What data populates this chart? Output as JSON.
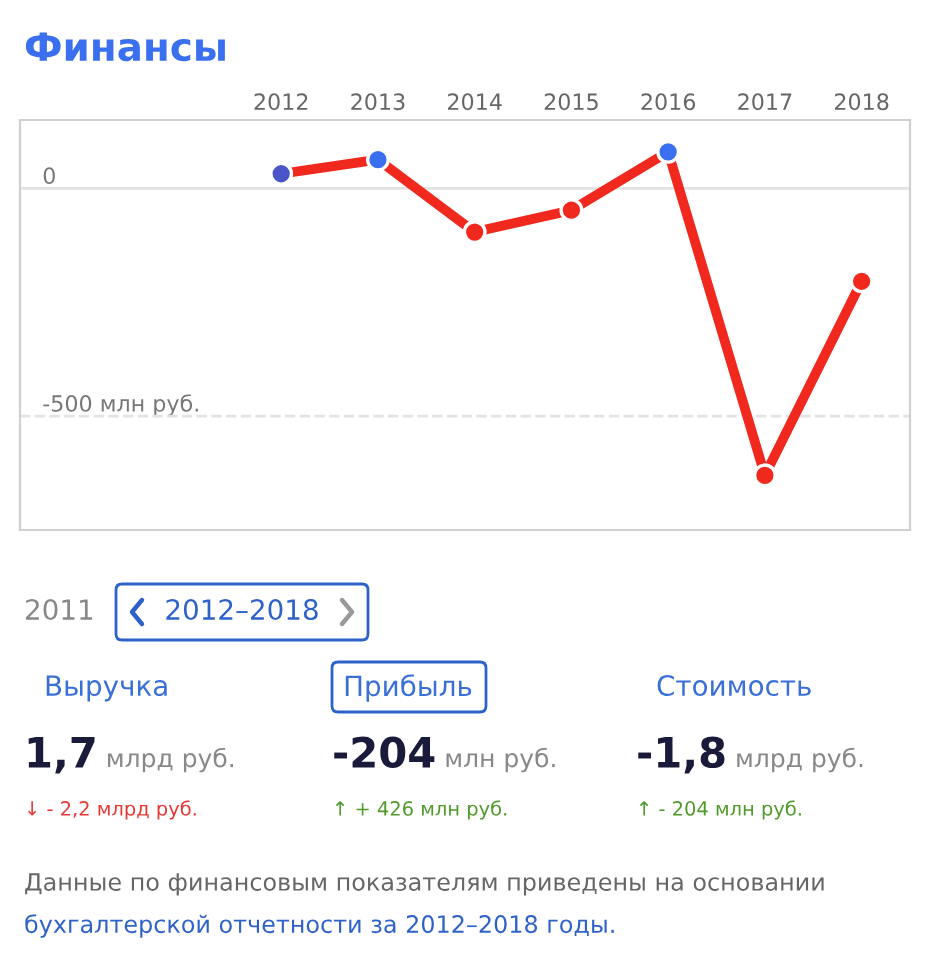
{
  "chart_data": [
    {
      "type": "line",
      "title": "Финансы",
      "categories": [
        "2012",
        "2013",
        "2014",
        "2015",
        "2016",
        "2017",
        "2018"
      ],
      "series": [
        {
          "color": "#f0281e",
          "colors": [
            "#4a55c8",
            "#3a6ff0",
            "#f0281e",
            "#f0281e",
            "#3a6ff0",
            "#f0281e",
            "#f0281e"
          ],
          "values": [
            32,
            63,
            -96,
            -48,
            80,
            -630,
            -204
          ]
        }
      ],
      "ylim": [
        -750,
        150
      ],
      "yticks": [
        0,
        {
          "value": -500,
          "label": "-500 млн руб."
        }
      ],
      "marker": "circle",
      "line_style": "solid",
      "ref_lines": [
        {
          "axis": "y",
          "value": 0,
          "color": "#e3e3e3",
          "line_style": "solid"
        },
        {
          "axis": "y",
          "value": -500,
          "color": "#e3e3e3",
          "line_style": "dashed"
        }
      ],
      "legend": false
    },
    {
      "type": "other",
      "annotations": [
        "2011",
        "2012–2018",
        "Выручка",
        "Прибыль",
        "Стоимость",
        "1,7",
        "млрд руб.",
        "-204",
        "млн руб.",
        "-1,8",
        "млрд руб.",
        "↓ - 2,2 млрд руб.",
        "↑ + 426 млн руб.",
        "↑ - 204 млн руб.",
        "Данные по финансовым показателям приведены на основании",
        "бухгалтерской отчетности за 2012–2018 годы."
      ]
    }
  ]
}
